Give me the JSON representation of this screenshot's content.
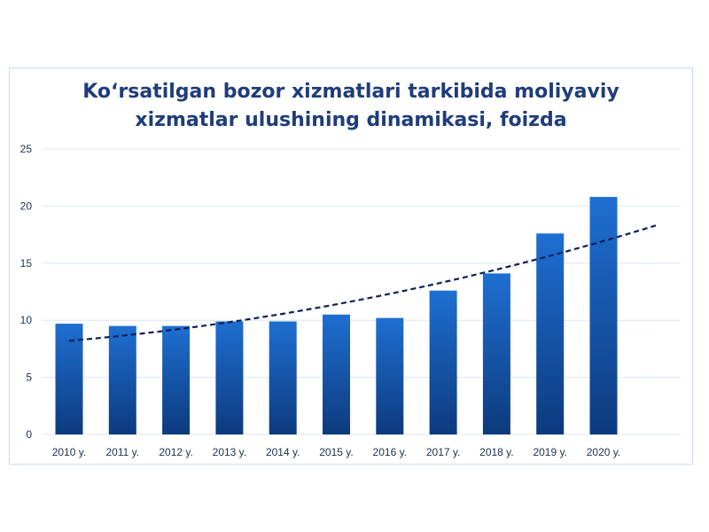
{
  "title_line1": "Ko‘rsatilgan bozor xizmatlari tarkibida moliyaviy",
  "title_line2": "xizmatlar ulushining dinamikasi, foizda",
  "chart_data": {
    "type": "bar",
    "title": "Ko‘rsatilgan bozor xizmatlari tarkibida moliyaviy xizmatlar ulushining dinamikasi, foizda",
    "categories": [
      "2010 y.",
      "2011 y.",
      "2012 y.",
      "2013 y.",
      "2014 y.",
      "2015 y.",
      "2016 y.",
      "2017 y.",
      "2018 y.",
      "2019 y.",
      "2020 y."
    ],
    "values": [
      9.7,
      9.5,
      9.5,
      9.9,
      9.9,
      10.5,
      10.2,
      12.6,
      14.1,
      17.6,
      20.8
    ],
    "ylim": [
      0,
      25
    ],
    "yticks": [
      0,
      5,
      10,
      15,
      20,
      25
    ],
    "grid": true,
    "legend": "none",
    "trendline": {
      "type": "polynomial",
      "style": "dashed",
      "start_value": 8.2,
      "end_value": 18.3
    },
    "colors": {
      "bar_top": "#1e6fd1",
      "bar_bottom": "#0d3a7e",
      "trend": "#0c1f5c",
      "grid": "#dce6f2",
      "tick_text": "#1f2f4f",
      "title": "#1f3d7a"
    }
  }
}
